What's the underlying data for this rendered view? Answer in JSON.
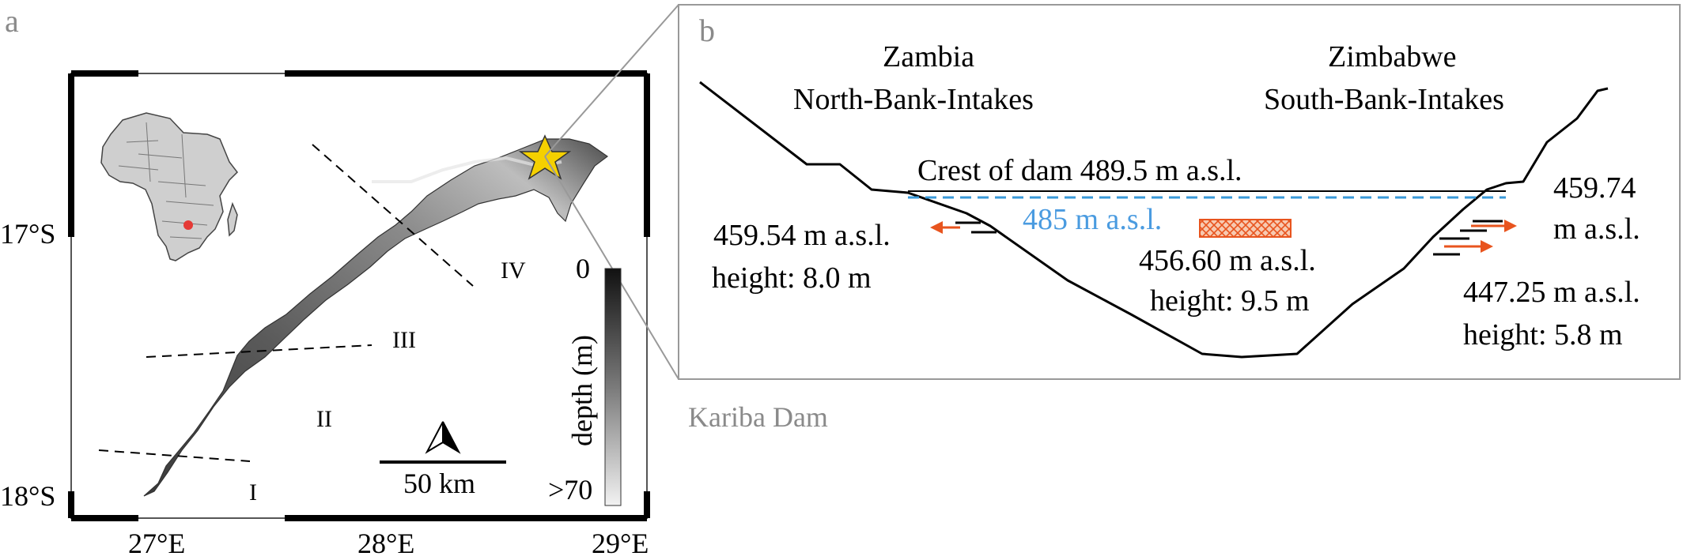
{
  "panel_a": {
    "letter": "a",
    "lat_labels": [
      "17°S",
      "18°S"
    ],
    "lon_labels": [
      "27°E",
      "28°E",
      "29°E"
    ],
    "basins": [
      "I",
      "II",
      "III",
      "IV"
    ],
    "scale_bar": "50 km",
    "colorbar": {
      "title": "depth (m)",
      "min_label": "0",
      "max_label": ">70"
    },
    "site_name": "Kariba Dam",
    "colors": {
      "star": "#f5d000",
      "africa_dot": "#e53935",
      "land": "#cfcfcf"
    }
  },
  "panel_b": {
    "letter": "b",
    "left_country": "Zambia",
    "left_intakes": "North-Bank-Intakes",
    "right_country": "Zimbabwe",
    "right_intakes": "South-Bank-Intakes",
    "crest": "Crest of dam 489.5 m a.s.l.",
    "water_level": "485 m a.s.l.",
    "north_intake_level": "459.54 m a.s.l.",
    "north_intake_height": "height: 8.0 m",
    "spillway_level": "456.60 m a.s.l.",
    "spillway_height": "height: 9.5 m",
    "south_intake_upper_1": "459.74",
    "south_intake_upper_2": "m a.s.l.",
    "south_intake_lower_level": "447.25 m a.s.l.",
    "south_intake_lower_height": "height: 5.8 m",
    "colors": {
      "water_line": "#3a9ad9",
      "arrows": "#e8541e",
      "spillway": "#e8541e"
    }
  }
}
